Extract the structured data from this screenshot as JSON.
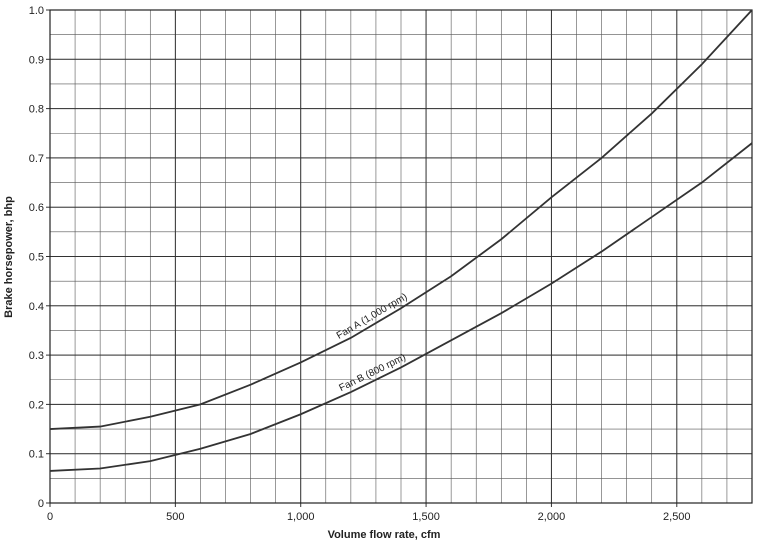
{
  "chart_data": {
    "type": "line",
    "x_label": "Volume flow rate, cfm",
    "y_label": "Brake horsepower, bhp",
    "x": [
      0,
      200,
      400,
      600,
      800,
      1000,
      1200,
      1400,
      1600,
      1800,
      2000,
      2200,
      2400,
      2600,
      2800
    ],
    "series": [
      {
        "name": "Fan A (1,000 rpm)",
        "color": "#333333",
        "values": [
          0.15,
          0.155,
          0.175,
          0.2,
          0.24,
          0.285,
          0.335,
          0.395,
          0.46,
          0.535,
          0.62,
          0.7,
          0.79,
          0.89,
          1.0
        ]
      },
      {
        "name": "Fan B (800 rpm)",
        "color": "#333333",
        "values": [
          0.065,
          0.07,
          0.085,
          0.11,
          0.14,
          0.18,
          0.225,
          0.275,
          0.33,
          0.385,
          0.445,
          0.51,
          0.58,
          0.65,
          0.73
        ]
      }
    ],
    "xlim": [
      0,
      2800
    ],
    "ylim": [
      0,
      1
    ],
    "xticks": [
      0,
      500,
      {
        "value": 1000,
        "label": "1,000"
      },
      {
        "value": 1500,
        "label": "1,500"
      },
      {
        "value": 2000,
        "label": "2,000"
      },
      {
        "value": 2500,
        "label": "2,500"
      }
    ],
    "yticks": [
      0,
      0.1,
      0.2,
      0.3,
      0.4,
      0.5,
      0.6,
      0.7,
      0.8,
      0.9,
      {
        "value": 1,
        "label": "1.0"
      }
    ],
    "grid": true,
    "minor_grid": {
      "x": 100,
      "y": 0.05
    }
  }
}
